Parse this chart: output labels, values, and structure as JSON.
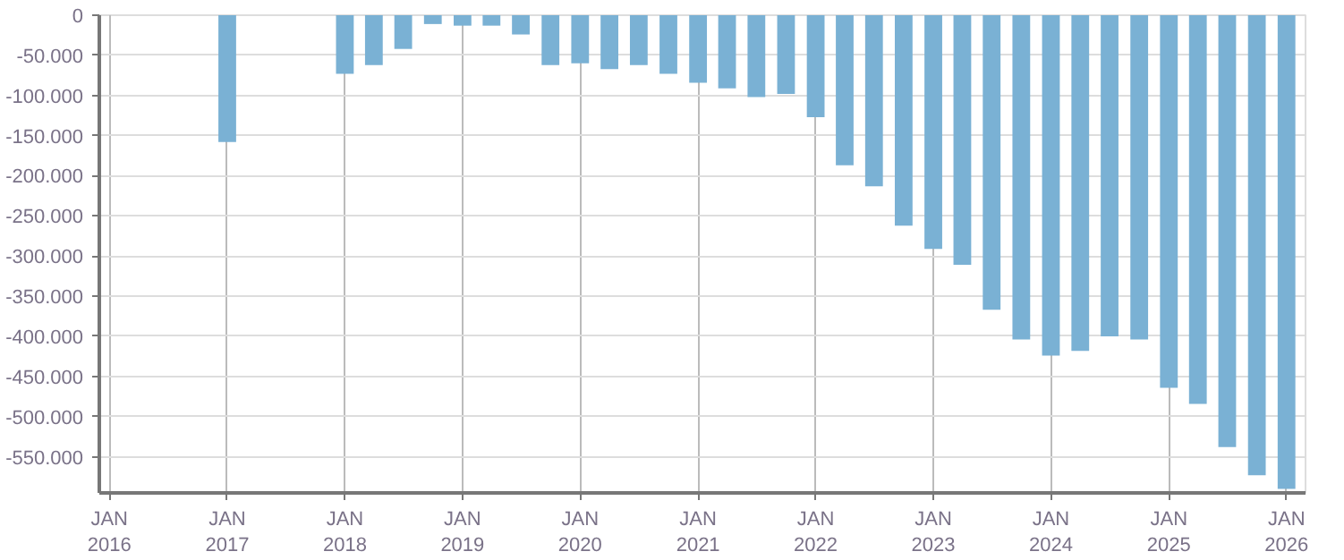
{
  "chart_data": {
    "type": "bar",
    "x": [
      "2017-01",
      "2018-01",
      "2018-04",
      "2018-07",
      "2018-10",
      "2019-01",
      "2019-04",
      "2019-07",
      "2019-10",
      "2020-01",
      "2020-04",
      "2020-07",
      "2020-10",
      "2021-01",
      "2021-04",
      "2021-07",
      "2021-10",
      "2022-01",
      "2022-04",
      "2022-07",
      "2022-10",
      "2023-01",
      "2023-04",
      "2023-07",
      "2023-10",
      "2024-01",
      "2024-04",
      "2024-07",
      "2024-10",
      "2025-01",
      "2025-04",
      "2025-07",
      "2025-10",
      "2026-01"
    ],
    "series": [
      {
        "color": "#7ab1d4",
        "values": [
          -158000,
          -73000,
          -62000,
          -42000,
          -11000,
          -13000,
          -13000,
          -24000,
          -62000,
          -60000,
          -67000,
          -62000,
          -73000,
          -84000,
          -91000,
          -102000,
          -98000,
          -127000,
          -187000,
          -213000,
          -262000,
          -291000,
          -311000,
          -367000,
          -404000,
          -424000,
          -418000,
          -400000,
          -404000,
          -464000,
          -484000,
          -538000,
          -573000,
          -590000
        ]
      }
    ],
    "xlim": [
      "2015-12",
      "2026-03"
    ],
    "xticks": [
      {
        "value": "2016-01",
        "label": "JAN\n2016"
      },
      {
        "value": "2017-01",
        "label": "JAN\n2017"
      },
      {
        "value": "2018-01",
        "label": "JAN\n2018"
      },
      {
        "value": "2019-01",
        "label": "JAN\n2019"
      },
      {
        "value": "2020-01",
        "label": "JAN\n2020"
      },
      {
        "value": "2021-01",
        "label": "JAN\n2021"
      },
      {
        "value": "2022-01",
        "label": "JAN\n2022"
      },
      {
        "value": "2023-01",
        "label": "JAN\n2023"
      },
      {
        "value": "2024-01",
        "label": "JAN\n2024"
      },
      {
        "value": "2025-01",
        "label": "JAN\n2025"
      },
      {
        "value": "2026-01",
        "label": "JAN\n2026"
      }
    ],
    "ylim": [
      -595000,
      0
    ],
    "yticks": [
      0,
      {
        "value": -50000,
        "label": "-50.000"
      },
      {
        "value": -100000,
        "label": "-100.000"
      },
      {
        "value": -150000,
        "label": "-150.000"
      },
      {
        "value": -200000,
        "label": "-200.000"
      },
      {
        "value": -250000,
        "label": "-250.000"
      },
      {
        "value": -300000,
        "label": "-300.000"
      },
      {
        "value": -350000,
        "label": "-350.000"
      },
      {
        "value": -400000,
        "label": "-400.000"
      },
      {
        "value": -450000,
        "label": "-450.000"
      },
      {
        "value": -500000,
        "label": "-500.000"
      },
      {
        "value": -550000,
        "label": "-550.000"
      }
    ],
    "grid": true
  }
}
